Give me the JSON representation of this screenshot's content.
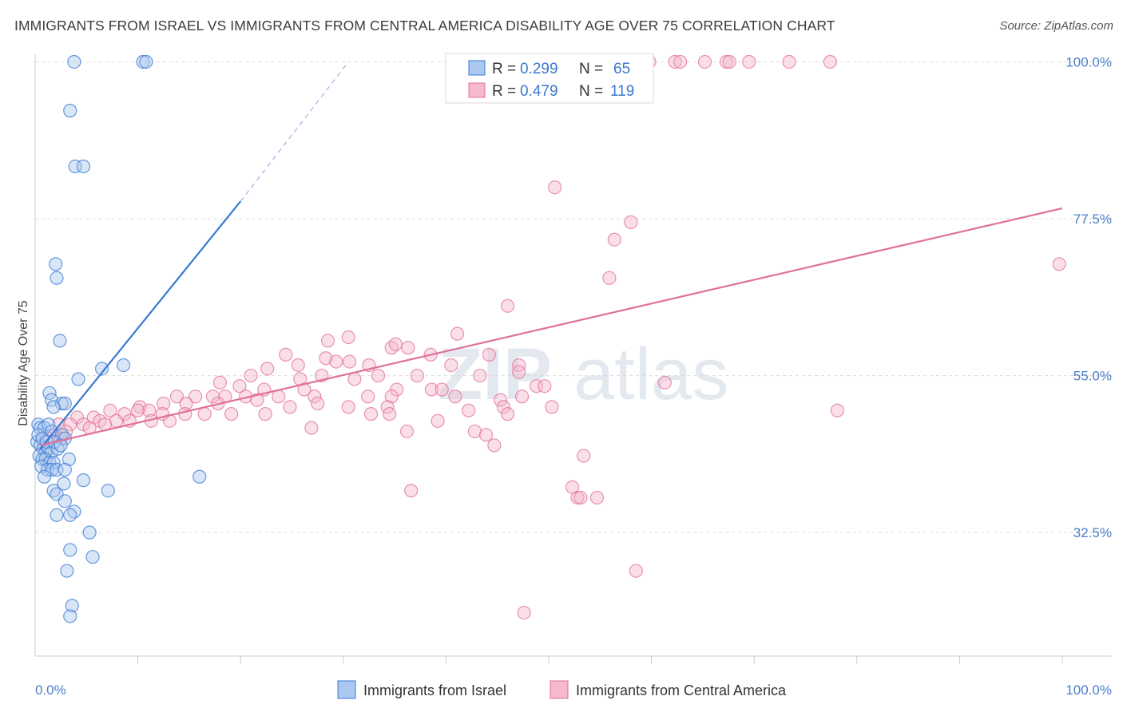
{
  "header": {
    "title": "IMMIGRANTS FROM ISRAEL VS IMMIGRANTS FROM CENTRAL AMERICA DISABILITY AGE OVER 75 CORRELATION CHART",
    "source": "Source: ZipAtlas.com"
  },
  "watermark": {
    "zip": "ZIP",
    "atlas": "atlas"
  },
  "colors": {
    "blue": "#3a78d0",
    "blue_fill": "#aac8f0",
    "pink": "#e0709a",
    "pink_fill": "#f5b8cc",
    "tick": "#4a7fc8"
  },
  "legend": {
    "rows": [
      {
        "r_label": "R = ",
        "r_value": "0.299",
        "n_label": "N = ",
        "n_value": "65"
      },
      {
        "r_label": "R = ",
        "r_value": "0.479",
        "n_label": "N = ",
        "n_value": "119"
      }
    ]
  },
  "chart_data": {
    "type": "scatter",
    "ylabel": "Disability Age Over 75",
    "xlim": [
      0,
      100
    ],
    "ylim": [
      15,
      102
    ],
    "y_ticks": [
      {
        "value": 100,
        "label": "100.0%"
      },
      {
        "value": 77.5,
        "label": "77.5%"
      },
      {
        "value": 55,
        "label": "55.0%"
      },
      {
        "value": 32.5,
        "label": "32.5%"
      }
    ],
    "x_tick_labels": [
      {
        "value": 0,
        "label": "0.0%"
      },
      {
        "value": 100,
        "label": "100.0%"
      }
    ],
    "x_minor_ticks": [
      10,
      20,
      30,
      40,
      50,
      60,
      70,
      80,
      90,
      100
    ],
    "grid": true,
    "legend_position": "top-center",
    "series": [
      {
        "name": "Immigrants from Israel",
        "color": "#3a78d0",
        "trend": {
          "x0": 0.5,
          "y0": 44.5,
          "x1": 20,
          "y1": 80,
          "dash_to_x": 30.5,
          "dash_to_y": 100
        },
        "points": [
          [
            3.8,
            100
          ],
          [
            10.5,
            100
          ],
          [
            10.8,
            100
          ],
          [
            3.4,
            93
          ],
          [
            3.9,
            85
          ],
          [
            4.7,
            85
          ],
          [
            2.0,
            71
          ],
          [
            2.1,
            69
          ],
          [
            2.4,
            60
          ],
          [
            6.5,
            56
          ],
          [
            8.6,
            56.5
          ],
          [
            4.2,
            54.5
          ],
          [
            1.4,
            52.5
          ],
          [
            1.6,
            51.5
          ],
          [
            2.6,
            51
          ],
          [
            2.9,
            51
          ],
          [
            1.8,
            50.5
          ],
          [
            0.3,
            48
          ],
          [
            0.5,
            47.5
          ],
          [
            0.9,
            47.5
          ],
          [
            1.3,
            48
          ],
          [
            1.6,
            47
          ],
          [
            2.6,
            46.5
          ],
          [
            2.9,
            46
          ],
          [
            0.2,
            45.5
          ],
          [
            0.5,
            45
          ],
          [
            0.8,
            44.5
          ],
          [
            1.0,
            44
          ],
          [
            1.3,
            44.5
          ],
          [
            1.6,
            44
          ],
          [
            2.2,
            44.5
          ],
          [
            0.4,
            43.5
          ],
          [
            0.7,
            43
          ],
          [
            1.0,
            43
          ],
          [
            1.4,
            42.5
          ],
          [
            1.8,
            42.5
          ],
          [
            3.3,
            43
          ],
          [
            0.6,
            42
          ],
          [
            1.2,
            41.5
          ],
          [
            1.6,
            41.5
          ],
          [
            2.1,
            41.5
          ],
          [
            2.9,
            41.5
          ],
          [
            0.9,
            40.5
          ],
          [
            4.7,
            40
          ],
          [
            2.8,
            39.5
          ],
          [
            1.8,
            38.5
          ],
          [
            2.1,
            38
          ],
          [
            7.1,
            38.5
          ],
          [
            2.9,
            37
          ],
          [
            3.8,
            35.5
          ],
          [
            2.1,
            35
          ],
          [
            3.4,
            35
          ],
          [
            5.3,
            32.5
          ],
          [
            3.4,
            30
          ],
          [
            5.6,
            29
          ],
          [
            3.1,
            27
          ],
          [
            3.6,
            22
          ],
          [
            3.4,
            20.5
          ],
          [
            16,
            40.5
          ],
          [
            0.3,
            46.5
          ],
          [
            0.7,
            46
          ],
          [
            1.1,
            45.5
          ],
          [
            1.9,
            45.5
          ],
          [
            2.5,
            45
          ]
        ]
      },
      {
        "name": "Immigrants from Central America",
        "color": "#e0709a",
        "trend": {
          "x0": 0.5,
          "y0": 45,
          "x1": 100,
          "y1": 79
        },
        "points": [
          [
            59.8,
            100
          ],
          [
            62.3,
            100
          ],
          [
            62.8,
            100
          ],
          [
            65.2,
            100
          ],
          [
            67.3,
            100
          ],
          [
            67.6,
            100
          ],
          [
            69.5,
            100
          ],
          [
            73.4,
            100
          ],
          [
            77.4,
            100
          ],
          [
            50.6,
            82
          ],
          [
            58,
            77
          ],
          [
            56.4,
            74.5
          ],
          [
            55.9,
            69
          ],
          [
            99.7,
            71
          ],
          [
            46,
            65
          ],
          [
            41.1,
            61
          ],
          [
            28.5,
            60
          ],
          [
            30.5,
            60.5
          ],
          [
            34.7,
            59
          ],
          [
            35.1,
            59.5
          ],
          [
            36.3,
            59
          ],
          [
            38.5,
            58
          ],
          [
            24.4,
            58
          ],
          [
            28.3,
            57.5
          ],
          [
            29.3,
            57
          ],
          [
            30.6,
            57
          ],
          [
            22.6,
            56
          ],
          [
            25.6,
            56.5
          ],
          [
            32.5,
            56.5
          ],
          [
            40.5,
            56.5
          ],
          [
            44.2,
            58
          ],
          [
            47.1,
            56.5
          ],
          [
            21,
            55
          ],
          [
            25.8,
            54.5
          ],
          [
            27.9,
            55
          ],
          [
            31.1,
            54.5
          ],
          [
            33.4,
            55
          ],
          [
            37.2,
            55
          ],
          [
            43.3,
            55
          ],
          [
            47.1,
            55.5
          ],
          [
            48.8,
            53.5
          ],
          [
            49.6,
            53.5
          ],
          [
            61.3,
            54
          ],
          [
            18,
            54
          ],
          [
            19.9,
            53.5
          ],
          [
            22.3,
            53
          ],
          [
            26.2,
            53
          ],
          [
            35.2,
            53
          ],
          [
            38.6,
            53
          ],
          [
            39.6,
            53
          ],
          [
            13.8,
            52
          ],
          [
            15.6,
            52
          ],
          [
            17.3,
            52
          ],
          [
            18.5,
            52
          ],
          [
            20.5,
            52
          ],
          [
            23.7,
            52
          ],
          [
            27.2,
            52
          ],
          [
            32.4,
            52
          ],
          [
            34.7,
            52
          ],
          [
            40.9,
            52
          ],
          [
            45.3,
            51.5
          ],
          [
            47.4,
            52
          ],
          [
            10.2,
            50.5
          ],
          [
            12.5,
            51
          ],
          [
            14.7,
            51
          ],
          [
            17.8,
            51
          ],
          [
            21.6,
            51.5
          ],
          [
            24.8,
            50.5
          ],
          [
            27.5,
            51
          ],
          [
            30.5,
            50.5
          ],
          [
            34.3,
            50.5
          ],
          [
            45.6,
            50.5
          ],
          [
            50.3,
            50.5
          ],
          [
            7.3,
            50
          ],
          [
            8.7,
            49.5
          ],
          [
            10,
            50
          ],
          [
            11.1,
            50
          ],
          [
            12.4,
            49.5
          ],
          [
            14.6,
            49.5
          ],
          [
            16.5,
            49.5
          ],
          [
            19.1,
            49.5
          ],
          [
            22.4,
            49.5
          ],
          [
            32.7,
            49.5
          ],
          [
            34.5,
            49.5
          ],
          [
            42.2,
            50
          ],
          [
            46,
            49.5
          ],
          [
            78.1,
            50
          ],
          [
            4.1,
            49
          ],
          [
            5.7,
            49
          ],
          [
            6.3,
            48.5
          ],
          [
            7.9,
            48.5
          ],
          [
            9.2,
            48.5
          ],
          [
            11.3,
            48.5
          ],
          [
            13.1,
            48.5
          ],
          [
            39.2,
            48.5
          ],
          [
            2.3,
            48
          ],
          [
            3.4,
            48
          ],
          [
            4.7,
            48
          ],
          [
            5.3,
            47.5
          ],
          [
            6.8,
            48
          ],
          [
            26.9,
            47.5
          ],
          [
            36.2,
            47
          ],
          [
            42.8,
            47
          ],
          [
            43.9,
            46.5
          ],
          [
            44.7,
            45
          ],
          [
            53.4,
            43.5
          ],
          [
            3.0,
            47
          ],
          [
            1.7,
            46.5
          ],
          [
            2.5,
            46
          ],
          [
            1.2,
            46
          ],
          [
            52.3,
            39
          ],
          [
            52.8,
            37.5
          ],
          [
            53.1,
            37.5
          ],
          [
            54.7,
            37.5
          ],
          [
            36.6,
            38.5
          ],
          [
            58.5,
            27
          ],
          [
            47.6,
            21
          ]
        ]
      }
    ]
  }
}
